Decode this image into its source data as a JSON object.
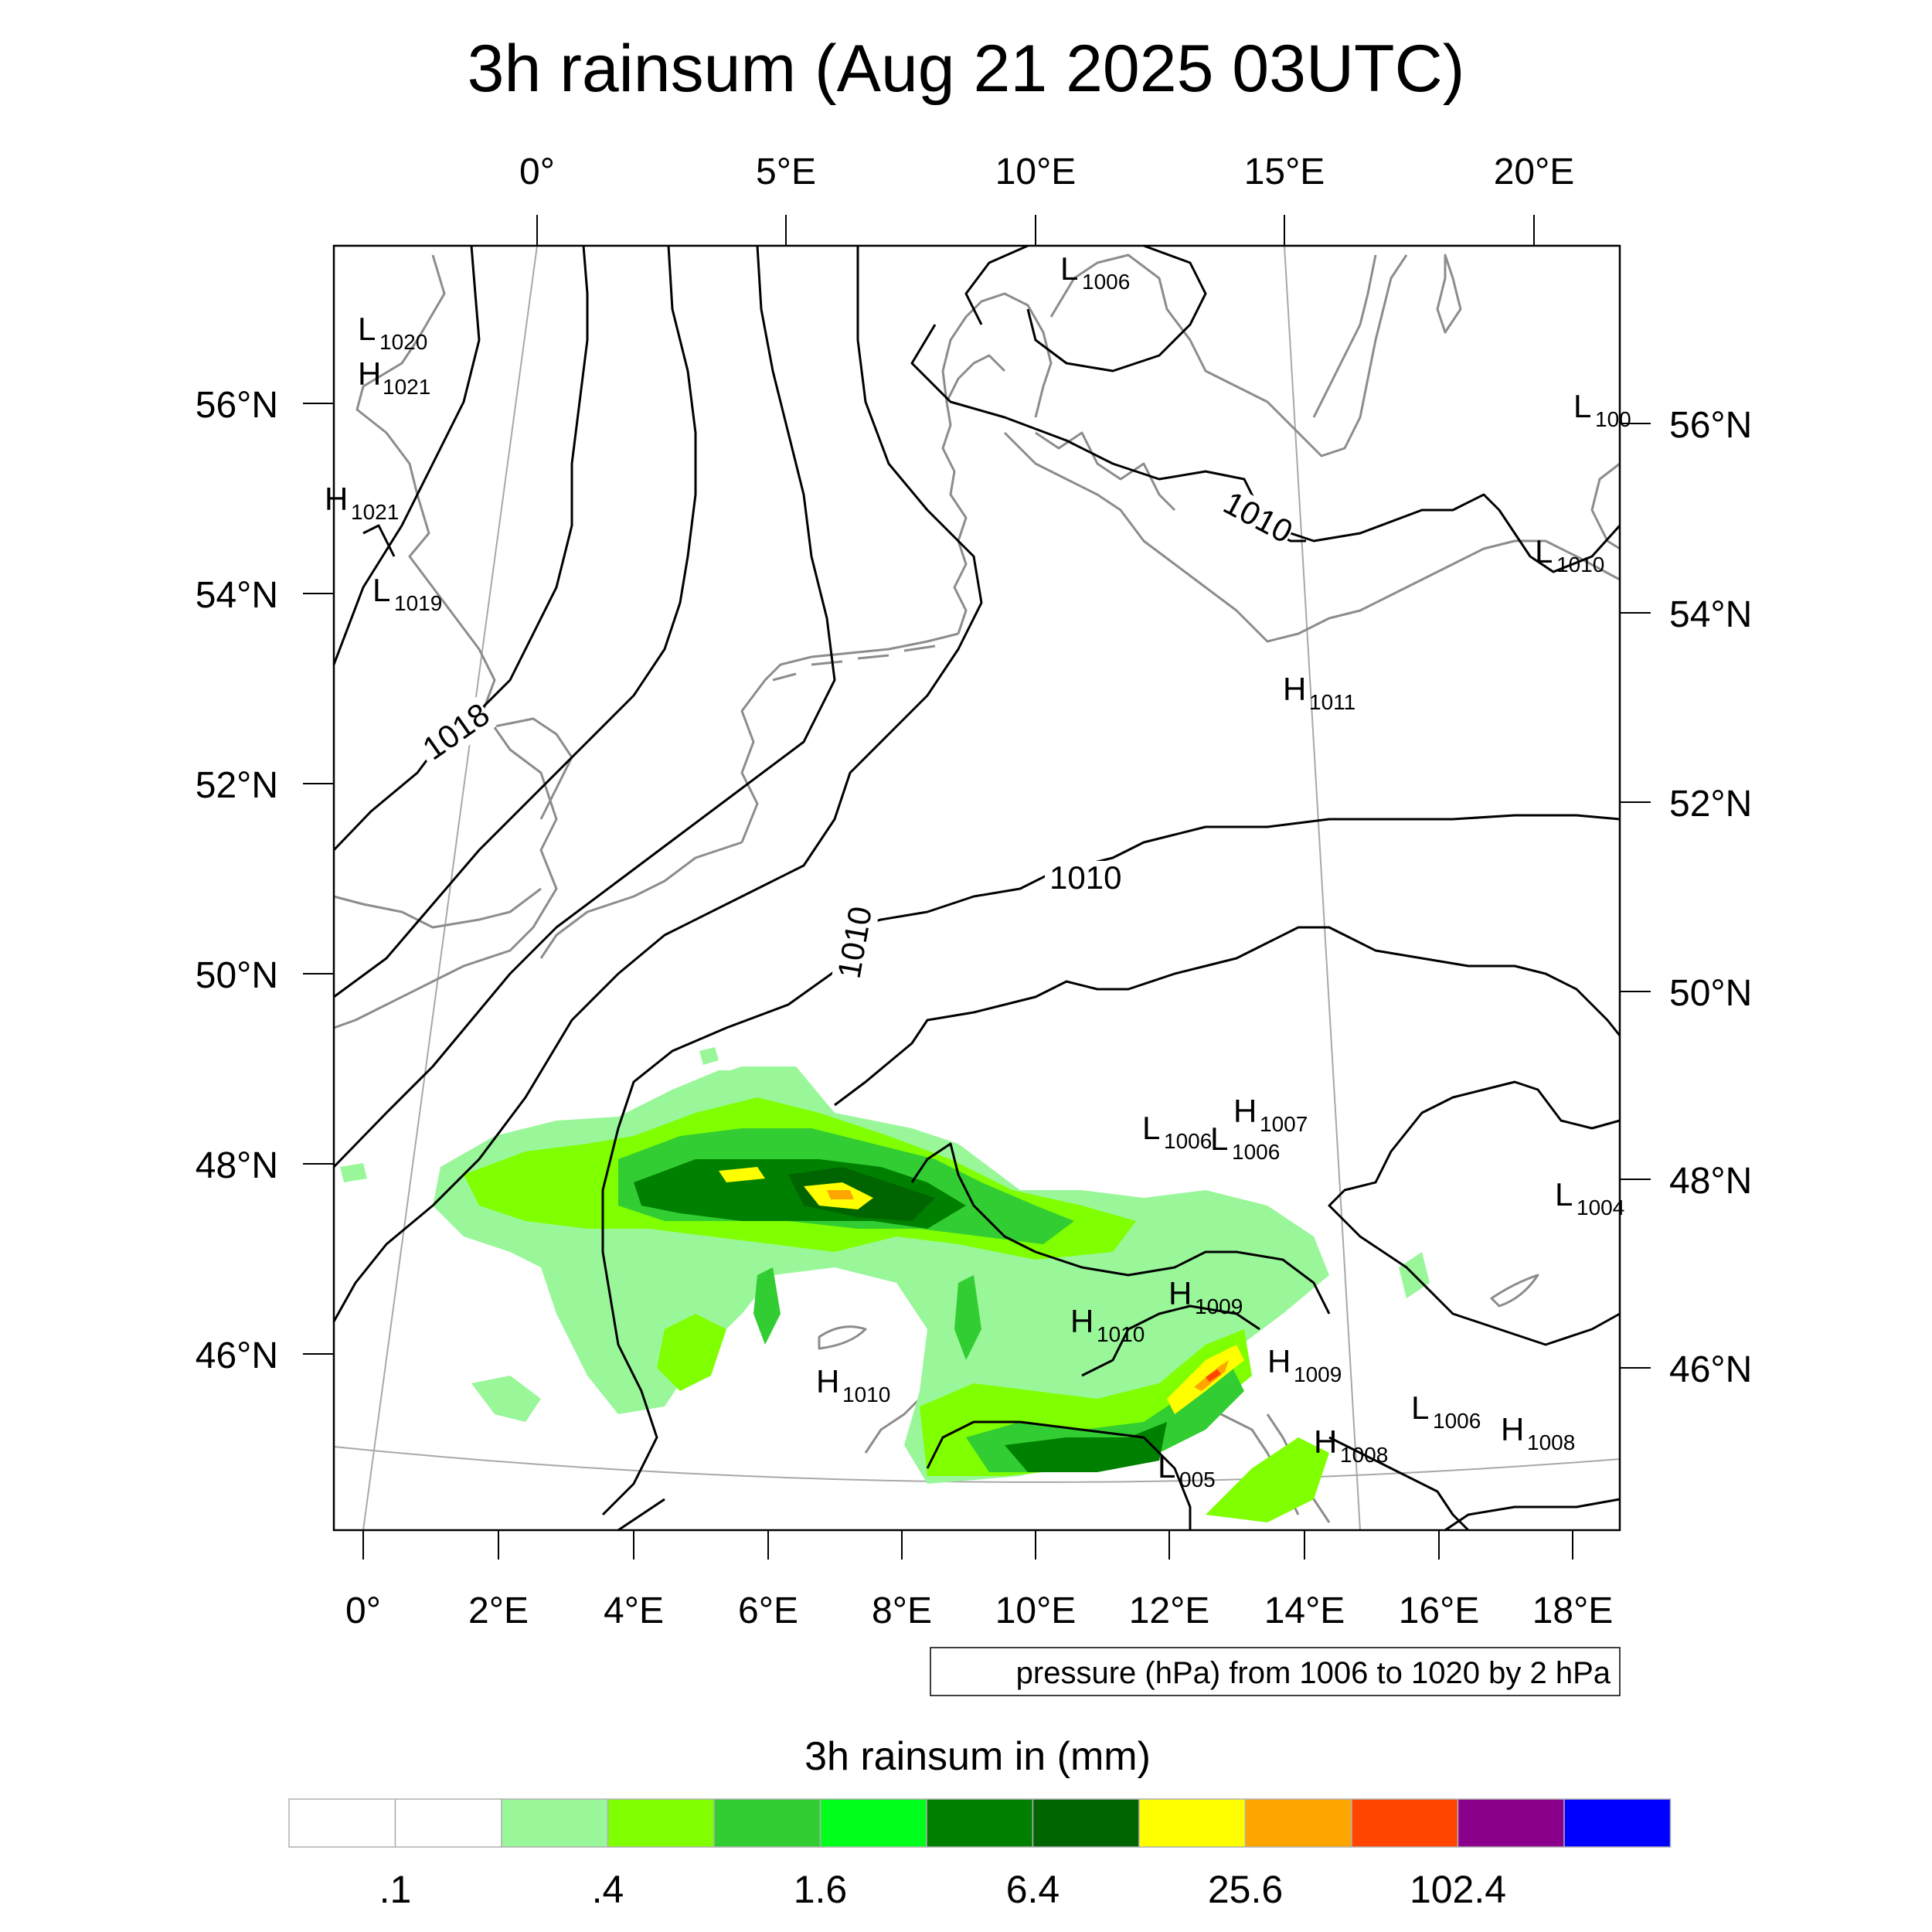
{
  "title": "3h rainsum (Aug 21 2025 03UTC)",
  "top_lon_labels": [
    "0°",
    "5°E",
    "10°E",
    "15°E",
    "20°E"
  ],
  "bottom_lon_labels": [
    "0°",
    "2°E",
    "4°E",
    "6°E",
    "8°E",
    "10°E",
    "12°E",
    "14°E",
    "16°E",
    "18°E"
  ],
  "left_lat_labels": [
    "56°N",
    "54°N",
    "52°N",
    "50°N",
    "48°N",
    "46°N"
  ],
  "right_lat_labels": [
    "56°N",
    "54°N",
    "52°N",
    "50°N",
    "48°N",
    "46°N"
  ],
  "isobar_labels": [
    "1010",
    "1018",
    "1010",
    "1010"
  ],
  "pressure_centers": [
    {
      "letter": "L",
      "value": "1020"
    },
    {
      "letter": "H",
      "value": "1021"
    },
    {
      "letter": "H",
      "value": "1021"
    },
    {
      "letter": "L",
      "value": "1019"
    },
    {
      "letter": "L",
      "value": "1006"
    },
    {
      "letter": "L",
      "value": "100"
    },
    {
      "letter": "L",
      "value": "1010"
    },
    {
      "letter": "H",
      "value": "1011"
    },
    {
      "letter": "L",
      "value": "1006"
    },
    {
      "letter": "L",
      "value": "1006"
    },
    {
      "letter": "H",
      "value": "1007"
    },
    {
      "letter": "L",
      "value": "1004"
    },
    {
      "letter": "H",
      "value": "1009"
    },
    {
      "letter": "H",
      "value": "1010"
    },
    {
      "letter": "H",
      "value": "1009"
    },
    {
      "letter": "H",
      "value": "1010"
    },
    {
      "letter": "L",
      "value": "1006"
    },
    {
      "letter": "H",
      "value": "1008"
    },
    {
      "letter": "H",
      "value": "1008"
    },
    {
      "letter": "L",
      "value": "005"
    }
  ],
  "contour_note": "pressure (hPa) from 1006 to 1020 by 2 hPa",
  "colorbar": {
    "title": "3h rainsum in (mm)",
    "colors": [
      "#ffffff",
      "#ffffff",
      "#99f799",
      "#7fff00",
      "#32cd32",
      "#00ff1a",
      "#008000",
      "#006400",
      "#ffff00",
      "#ffa500",
      "#ff4500",
      "#8b008b",
      "#0000ff"
    ],
    "labels": [
      ".1",
      ".4",
      "1.6",
      "6.4",
      "25.6",
      "102.4"
    ]
  }
}
